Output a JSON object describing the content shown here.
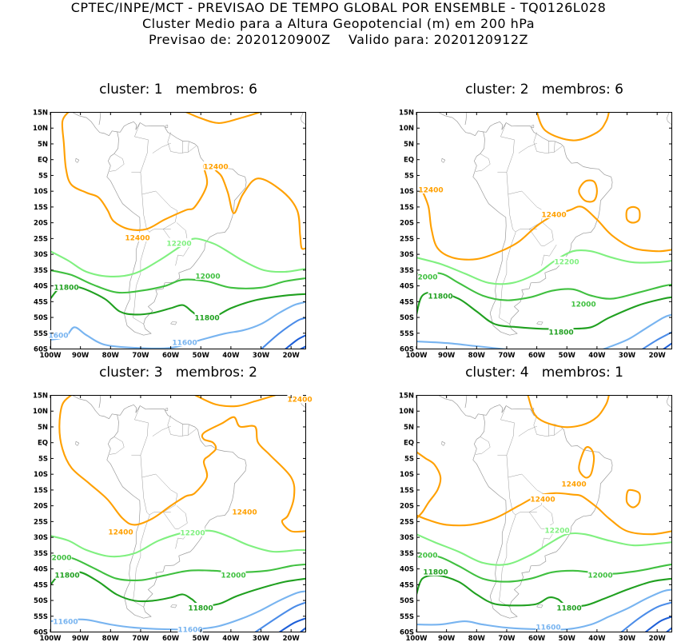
{
  "header": {
    "line1": "CPTEC/INPE/MCT - PREVISAO DE TEMPO GLOBAL POR ENSEMBLE - TQ0126L028",
    "line2": "Cluster Medio para a Altura Geopotencial (m) em 200 hPa",
    "line3": "Previsao de: 2020120900Z    Valido para: 2020120912Z"
  },
  "axes": {
    "lat_labels": [
      "15N",
      "10N",
      "5N",
      "EQ",
      "5S",
      "10S",
      "15S",
      "20S",
      "25S",
      "30S",
      "35S",
      "40S",
      "45S",
      "50S",
      "55S",
      "60S"
    ],
    "lon_labels": [
      "100W",
      "90W",
      "80W",
      "70W",
      "60W",
      "50W",
      "40W",
      "30W",
      "20W"
    ]
  },
  "colors": {
    "c12400": "#ffa000",
    "c12200": "#80f080",
    "c12000": "#40c040",
    "c11800": "#20a020",
    "c11600": "#78b4f0",
    "c11400": "#4b8ce8",
    "c11200": "#1e5fd8",
    "coast": "#9a9a9a"
  },
  "panels": [
    {
      "title": "cluster: 1   membros: 6",
      "labels": [
        {
          "text": "12400",
          "color": "c12400"
        },
        {
          "text": "12400",
          "color": "c12400"
        },
        {
          "text": "12200",
          "color": "c12200"
        },
        {
          "text": "12000",
          "color": "c12000"
        },
        {
          "text": "11800",
          "color": "c11800"
        },
        {
          "text": "11800",
          "color": "c11800"
        },
        {
          "text": "1600",
          "color": "c11600"
        },
        {
          "text": "11600",
          "color": "c11600"
        }
      ]
    },
    {
      "title": "cluster: 2   membros: 6",
      "labels": [
        {
          "text": "12400",
          "color": "c12400"
        },
        {
          "text": "12400",
          "color": "c12400"
        },
        {
          "text": "12200",
          "color": "c12200"
        },
        {
          "text": "2000",
          "color": "c12000"
        },
        {
          "text": "12000",
          "color": "c12000"
        },
        {
          "text": "11800",
          "color": "c11800"
        },
        {
          "text": "11800",
          "color": "c11800"
        }
      ]
    },
    {
      "title": "cluster: 3   membros: 2",
      "labels": [
        {
          "text": "12400",
          "color": "c12400"
        },
        {
          "text": "12400",
          "color": "c12400"
        },
        {
          "text": "12400",
          "color": "c12400"
        },
        {
          "text": "12200",
          "color": "c12200"
        },
        {
          "text": "2000",
          "color": "c12000"
        },
        {
          "text": "12000",
          "color": "c12000"
        },
        {
          "text": "11800",
          "color": "c11800"
        },
        {
          "text": "11800",
          "color": "c11800"
        },
        {
          "text": "11600",
          "color": "c11600"
        },
        {
          "text": "11600",
          "color": "c11600"
        }
      ]
    },
    {
      "title": "cluster: 4   membros: 1",
      "labels": [
        {
          "text": "12400",
          "color": "c12400"
        },
        {
          "text": "12400",
          "color": "c12400"
        },
        {
          "text": "12200",
          "color": "c12200"
        },
        {
          "text": "2000",
          "color": "c12000"
        },
        {
          "text": "12000",
          "color": "c12000"
        },
        {
          "text": "11800",
          "color": "c11800"
        },
        {
          "text": "11800",
          "color": "c11800"
        },
        {
          "text": "11600",
          "color": "c11600"
        }
      ]
    }
  ]
}
